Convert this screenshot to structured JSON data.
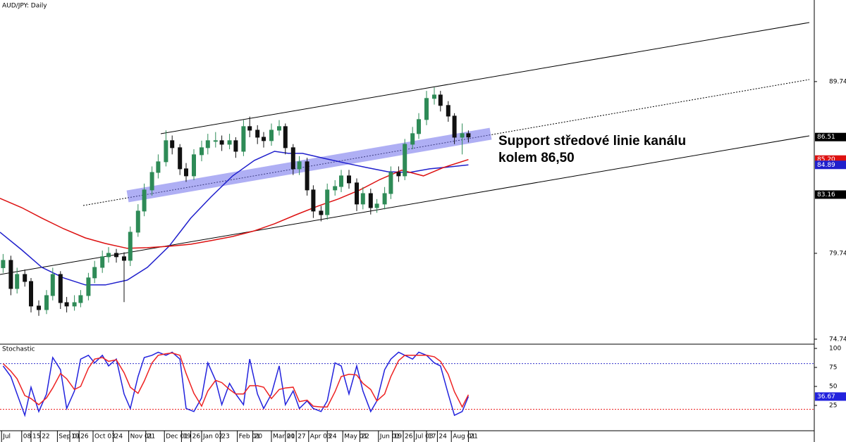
{
  "chart_data": [
    {
      "type": "candlestick",
      "title": "AUD/JPY: Daily",
      "annotation": [
        "Support středové linie kanálu",
        "kolem 86,50"
      ],
      "up_color": "#2e8b57",
      "down_color": "#111111",
      "xlim": [
        0,
        525
      ],
      "ylim": [
        74.45,
        94.49
      ],
      "yticks": [
        74.74,
        79.74,
        89.74
      ],
      "x": [
        2,
        7,
        11,
        16,
        20,
        25,
        30,
        34,
        39,
        43,
        48,
        52,
        57,
        61,
        66,
        70,
        75,
        80,
        84,
        89,
        93,
        98,
        102,
        107,
        111,
        116,
        120,
        125,
        130,
        134,
        139,
        143,
        148,
        152,
        157,
        161,
        166,
        170,
        175,
        180,
        184,
        189,
        193,
        198,
        202,
        207,
        211,
        216,
        220,
        225,
        230,
        234,
        239,
        243,
        248,
        252,
        257,
        261,
        266,
        270,
        275,
        280,
        284,
        289,
        293,
        298,
        302
      ],
      "open": [
        78.9,
        79.33,
        77.69,
        78.51,
        78.1,
        76.67,
        76.46,
        77.28,
        78.51,
        76.87,
        76.67,
        76.87,
        77.28,
        78.31,
        78.92,
        79.54,
        79.74,
        79.54,
        79.33,
        80.97,
        82.2,
        83.43,
        84.45,
        85.07,
        86.3,
        85.89,
        84.66,
        84.25,
        85.48,
        85.89,
        86.3,
        86.3,
        86.09,
        86.3,
        85.68,
        87.12,
        86.91,
        86.5,
        86.3,
        86.91,
        87.12,
        85.89,
        84.66,
        85.07,
        83.43,
        82.2,
        81.99,
        83.43,
        83.63,
        84.25,
        83.84,
        82.61,
        83.22,
        82.4,
        82.61,
        83.22,
        84.45,
        84.25,
        86.09,
        86.71,
        87.53,
        88.76,
        88.96,
        88.35,
        87.73,
        86.5,
        86.71
      ],
      "high": [
        79.7,
        79.6,
        78.9,
        78.8,
        78.3,
        77.0,
        77.6,
        78.9,
        78.7,
        77.2,
        77.3,
        77.6,
        78.6,
        79.3,
        79.9,
        80.1,
        80.0,
        79.8,
        81.3,
        82.6,
        83.8,
        84.8,
        85.5,
        86.9,
        86.6,
        86.1,
        85.0,
        85.8,
        86.3,
        86.7,
        86.8,
        86.6,
        86.7,
        86.5,
        87.5,
        87.7,
        87.2,
        86.8,
        87.3,
        87.5,
        87.3,
        86.1,
        85.4,
        85.3,
        83.7,
        82.5,
        83.8,
        84.0,
        84.6,
        84.6,
        84.1,
        83.6,
        83.5,
        82.9,
        83.6,
        84.8,
        84.8,
        86.4,
        87.1,
        87.9,
        89.2,
        89.4,
        89.2,
        88.6,
        87.9,
        87.3,
        86.9
      ],
      "low": [
        78.6,
        77.3,
        77.4,
        77.8,
        76.3,
        76.1,
        76.2,
        77.0,
        76.5,
        76.3,
        76.4,
        76.6,
        77.0,
        78.0,
        78.6,
        79.2,
        79.2,
        76.9,
        79.0,
        80.7,
        81.9,
        83.1,
        84.1,
        84.8,
        85.5,
        84.3,
        83.9,
        84.0,
        85.1,
        85.5,
        85.9,
        85.7,
        85.8,
        85.3,
        85.4,
        86.5,
        86.1,
        85.9,
        86.0,
        86.6,
        85.5,
        84.3,
        84.3,
        83.1,
        81.8,
        81.6,
        81.7,
        83.1,
        83.3,
        83.5,
        82.2,
        82.3,
        82.0,
        82.1,
        82.3,
        82.9,
        83.9,
        84.0,
        85.8,
        86.4,
        87.2,
        88.4,
        88.0,
        87.4,
        86.1,
        85.5,
        86.2
      ],
      "close": [
        79.33,
        77.69,
        78.51,
        78.1,
        76.67,
        76.46,
        77.28,
        78.51,
        76.87,
        76.67,
        76.87,
        77.28,
        78.31,
        78.92,
        79.54,
        79.74,
        79.54,
        79.33,
        80.97,
        82.2,
        83.43,
        84.45,
        85.07,
        86.3,
        85.89,
        84.66,
        84.25,
        85.48,
        85.89,
        86.3,
        86.3,
        86.09,
        86.3,
        85.68,
        87.12,
        86.91,
        86.5,
        86.3,
        86.91,
        87.12,
        85.89,
        84.66,
        85.07,
        83.43,
        82.2,
        81.99,
        83.43,
        83.63,
        84.25,
        83.84,
        82.61,
        83.22,
        82.4,
        82.61,
        83.22,
        84.45,
        84.25,
        86.09,
        86.71,
        87.53,
        88.76,
        88.96,
        88.35,
        87.73,
        86.5,
        86.71,
        86.51
      ],
      "series": [
        {
          "color": "#1f1fcc",
          "x": [
            0,
            14,
            27,
            41,
            55,
            68,
            82,
            95,
            109,
            123,
            136,
            150,
            164,
            177,
            186,
            195,
            209,
            223,
            236,
            250,
            264,
            277,
            291,
            302
          ],
          "values": [
            80.97,
            79.94,
            78.92,
            78.31,
            77.9,
            77.9,
            78.18,
            78.92,
            80.15,
            81.79,
            83.02,
            84.25,
            85.15,
            85.68,
            85.56,
            85.56,
            85.27,
            84.99,
            84.74,
            84.49,
            84.45,
            84.66,
            84.78,
            84.89
          ]
        },
        {
          "color": "#dd1111",
          "x": [
            0,
            14,
            27,
            41,
            55,
            68,
            82,
            95,
            109,
            123,
            136,
            150,
            164,
            177,
            191,
            205,
            218,
            232,
            245,
            259,
            273,
            286,
            302
          ],
          "values": [
            82.94,
            82.4,
            81.79,
            81.17,
            80.64,
            80.31,
            80.03,
            80.07,
            80.15,
            80.27,
            80.48,
            80.72,
            81.05,
            81.46,
            81.99,
            82.49,
            82.9,
            83.43,
            84.04,
            84.58,
            84.25,
            84.74,
            85.2
          ]
        }
      ],
      "price_labels": [
        {
          "value": 86.51,
          "color": "#000000"
        },
        {
          "value": 85.2,
          "label": "85.20",
          "color": "#dd1111"
        },
        {
          "value": 84.89,
          "color": "#1f1fcc"
        },
        {
          "value": 83.16,
          "color": "#000000"
        }
      ]
    },
    {
      "type": "line",
      "title": "Stochastic",
      "xlim": [
        0,
        525
      ],
      "ylim": [
        -8.3,
        105.6
      ],
      "yticks": [
        25,
        50,
        75,
        100
      ],
      "xticks": [
        {
          "value": 1,
          "label": "Jul"
        },
        {
          "value": 14,
          "label": "08"
        },
        {
          "value": 20,
          "label": "15"
        },
        {
          "value": 26,
          "label": "22"
        },
        {
          "value": 37,
          "label": "Sep 01"
        },
        {
          "value": 45,
          "label": "19"
        },
        {
          "value": 51,
          "label": "26"
        },
        {
          "value": 60,
          "label": "Oct 03"
        },
        {
          "value": 73,
          "label": "24"
        },
        {
          "value": 83,
          "label": "Nov 01"
        },
        {
          "value": 94,
          "label": "21"
        },
        {
          "value": 106,
          "label": "Dec 01"
        },
        {
          "value": 117,
          "label": "19"
        },
        {
          "value": 123,
          "label": "26"
        },
        {
          "value": 130,
          "label": "Jan 02"
        },
        {
          "value": 142,
          "label": "23"
        },
        {
          "value": 153,
          "label": "Feb 01"
        },
        {
          "value": 163,
          "label": "20"
        },
        {
          "value": 175,
          "label": "Mar 01"
        },
        {
          "value": 184,
          "label": "20"
        },
        {
          "value": 191,
          "label": "27"
        },
        {
          "value": 199,
          "label": "Apr 03"
        },
        {
          "value": 211,
          "label": "24"
        },
        {
          "value": 221,
          "label": "May 01"
        },
        {
          "value": 232,
          "label": "22"
        },
        {
          "value": 244,
          "label": "Jun 01"
        },
        {
          "value": 253,
          "label": "19"
        },
        {
          "value": 260,
          "label": "26"
        },
        {
          "value": 267,
          "label": "Jul 03"
        },
        {
          "value": 275,
          "label": "17"
        },
        {
          "value": 282,
          "label": "24"
        },
        {
          "value": 291,
          "label": "Aug 01"
        },
        {
          "value": 302,
          "label": "21"
        }
      ],
      "levels": [
        {
          "value": 80,
          "color": "#3333cc"
        },
        {
          "value": 20,
          "color": "#ee2222"
        }
      ],
      "x": [
        2,
        7,
        11,
        16,
        20,
        25,
        30,
        34,
        39,
        43,
        48,
        52,
        57,
        61,
        66,
        70,
        75,
        80,
        84,
        89,
        93,
        98,
        102,
        107,
        111,
        116,
        120,
        125,
        130,
        134,
        139,
        143,
        148,
        152,
        157,
        161,
        166,
        170,
        175,
        180,
        184,
        189,
        193,
        198,
        202,
        207,
        211,
        216,
        220,
        225,
        230,
        234,
        239,
        243,
        248,
        252,
        257,
        261,
        266,
        270,
        275,
        280,
        284,
        289,
        293,
        298,
        302
      ],
      "series": [
        {
          "color": "#2222dd",
          "values": [
            77,
            63,
            40,
            12,
            49,
            17,
            40,
            88,
            72,
            21,
            44,
            86,
            91,
            81,
            91,
            77,
            86,
            40,
            21,
            63,
            88,
            91,
            95,
            91,
            95,
            86,
            21,
            17,
            35,
            81,
            58,
            26,
            54,
            40,
            26,
            86,
            40,
            21,
            40,
            77,
            26,
            44,
            21,
            31,
            21,
            17,
            31,
            81,
            77,
            40,
            77,
            44,
            17,
            31,
            72,
            86,
            95,
            91,
            86,
            95,
            91,
            81,
            77,
            40,
            12,
            17,
            36.67
          ]
        },
        {
          "color": "#ee2222",
          "values": [
            80,
            70,
            60,
            38,
            34,
            26,
            35,
            48,
            67,
            60,
            46,
            50,
            74,
            86,
            88,
            83,
            85,
            68,
            49,
            41,
            57,
            81,
            91,
            93,
            94,
            91,
            67,
            41,
            24,
            44,
            58,
            55,
            46,
            40,
            40,
            51,
            51,
            49,
            34,
            46,
            48,
            49,
            30,
            32,
            24,
            23,
            23,
            43,
            63,
            66,
            65,
            54,
            46,
            31,
            40,
            63,
            84,
            91,
            91,
            91,
            91,
            89,
            83,
            66,
            43,
            23,
            39
          ]
        }
      ],
      "price_labels": [
        {
          "value": 36.67,
          "color": "#2222dd"
        }
      ]
    }
  ]
}
